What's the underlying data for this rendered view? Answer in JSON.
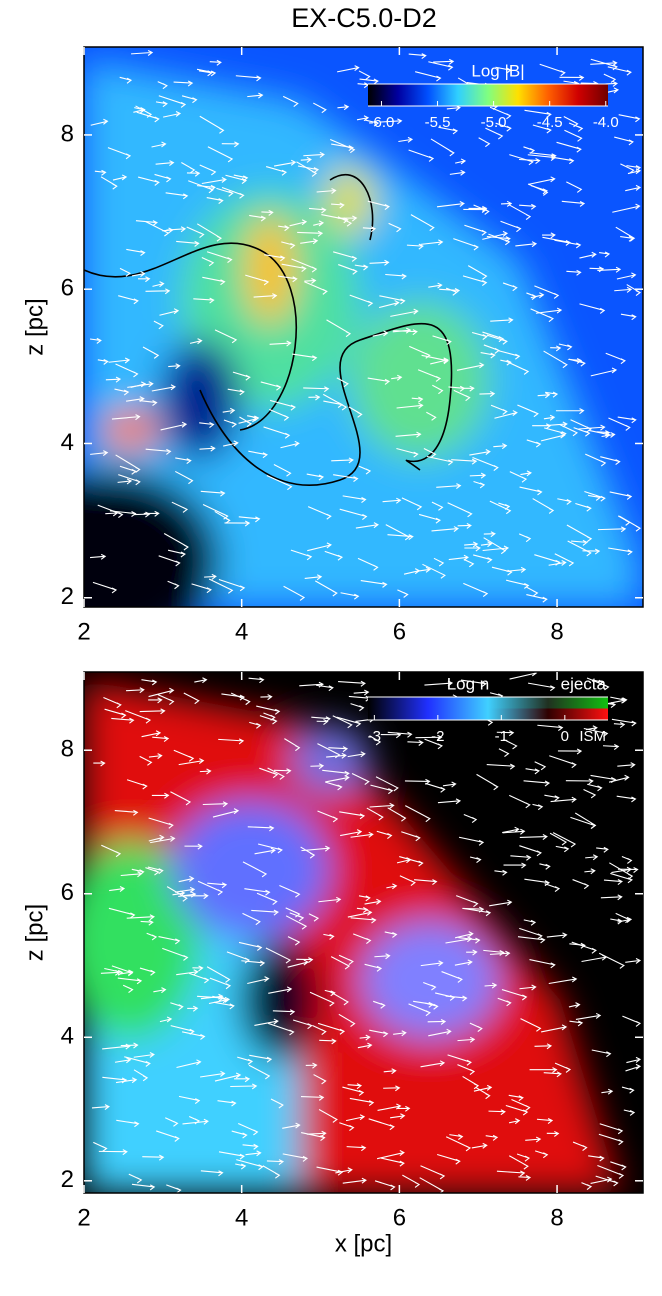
{
  "title": "EX-C5.0-D2",
  "chart_data": [
    {
      "type": "image",
      "ylabel": "z [pc]",
      "xlim": [
        2,
        9.09
      ],
      "ylim": [
        1.88,
        9.14
      ],
      "xticks": [
        2,
        4,
        6,
        8
      ],
      "yticks": [
        2,
        4,
        6,
        8
      ],
      "colorbar": {
        "label": "Log |B|",
        "lim": [
          -6.12,
          -3.98
        ],
        "ticks": [
          {
            "value": -6,
            "label": "-6.0"
          },
          {
            "value": -5.5,
            "label": "-5.5"
          },
          {
            "value": -5,
            "label": "-5.0"
          },
          {
            "value": -4.5,
            "label": "-4.5"
          },
          {
            "value": -4,
            "label": "-4.0"
          }
        ],
        "colormaps": [
          [
            "#000000",
            "#0000a0",
            "#0050ff",
            "#30d0ff",
            "#80ff80",
            "#ffe000",
            "#ff6000",
            "#d00000",
            "#700000"
          ]
        ]
      }
    },
    {
      "type": "image",
      "ylabel": "z [pc]",
      "xlabel": "x [pc]",
      "xlim": [
        2,
        9.09
      ],
      "ylim": [
        1.83,
        9.09
      ],
      "xticks": [
        2,
        4,
        6,
        8
      ],
      "yticks": [
        2,
        4,
        6,
        8
      ],
      "colorbar": {
        "label": "Log n",
        "lim": [
          -3.1,
          0.68
        ],
        "ticks": [
          -3,
          -2,
          -1,
          0
        ],
        "top_label": "ejecta",
        "bottom_label": "ISM",
        "colormaps": [
          [
            "#000000",
            "#2030ff",
            "#40d0ff",
            "#203020",
            "#10c010"
          ],
          [
            "#000000",
            "#2030ff",
            "#40d0ff",
            "#300000",
            "#ff1010"
          ]
        ]
      }
    }
  ]
}
